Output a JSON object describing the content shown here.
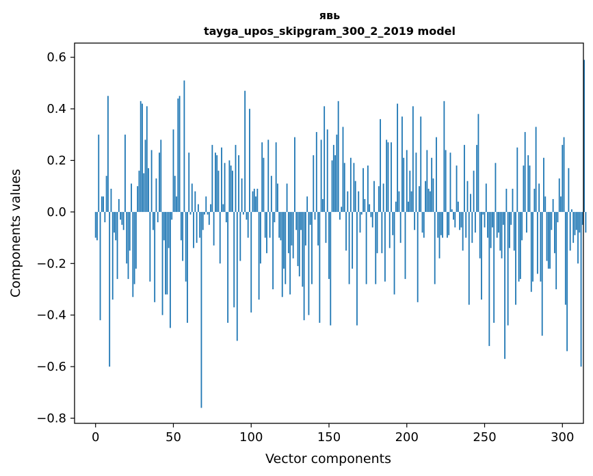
{
  "chart_data": {
    "type": "bar",
    "title": "явь",
    "subtitle": "tayga_upos_skipgram_300_2_2019 model",
    "xlabel": "Vector components",
    "ylabel": "Components values",
    "xlim": [
      -13.5,
      313.5
    ],
    "ylim": [
      -0.82,
      0.655
    ],
    "xticks": [
      0,
      50,
      100,
      150,
      200,
      250,
      300
    ],
    "yticks": [
      0.6,
      0.4,
      0.2,
      0.0,
      -0.2,
      -0.4,
      -0.6,
      -0.8
    ],
    "ytick_labels": [
      "0.6",
      "0.4",
      "0.2",
      "0.0",
      "−0.2",
      "−0.4",
      "−0.6",
      "−0.8"
    ],
    "xtick_labels": [
      "0",
      "50",
      "100",
      "150",
      "200",
      "250",
      "300"
    ],
    "grid": false,
    "bar_color": "#1f77b4",
    "categories_start": 0,
    "values": [
      -0.1,
      -0.11,
      0.3,
      -0.42,
      0.06,
      0.06,
      -0.04,
      0.14,
      0.45,
      -0.6,
      0.09,
      -0.34,
      -0.08,
      -0.11,
      -0.26,
      0.05,
      -0.03,
      -0.05,
      -0.07,
      0.3,
      -0.2,
      -0.26,
      -0.15,
      0.11,
      -0.33,
      -0.28,
      -0.22,
      0.1,
      0.16,
      0.43,
      0.42,
      0.15,
      0.28,
      0.41,
      0.17,
      -0.27,
      0.24,
      -0.07,
      -0.35,
      0.13,
      -0.04,
      0.23,
      0.28,
      -0.4,
      -0.11,
      -0.32,
      -0.32,
      -0.14,
      -0.45,
      -0.03,
      0.32,
      0.14,
      0.06,
      0.44,
      0.45,
      -0.11,
      -0.19,
      0.51,
      -0.27,
      -0.43,
      0.23,
      -0.01,
      0.11,
      -0.14,
      0.08,
      -0.12,
      0.03,
      -0.1,
      -0.76,
      -0.07,
      -0.01,
      0.06,
      -0.01,
      -0.05,
      0.03,
      0.26,
      -0.13,
      0.23,
      0.22,
      0.16,
      -0.2,
      0.25,
      0.03,
      0.19,
      -0.04,
      -0.43,
      0.2,
      0.18,
      0.16,
      -0.37,
      0.26,
      -0.5,
      0.22,
      -0.19,
      0.13,
      -0.01,
      0.47,
      -0.03,
      -0.1,
      0.4,
      -0.39,
      0.08,
      0.09,
      0.06,
      0.09,
      -0.34,
      -0.2,
      0.27,
      0.21,
      -0.1,
      -0.16,
      0.28,
      -0.1,
      0.14,
      -0.3,
      -0.04,
      0.27,
      0.11,
      -0.1,
      -0.11,
      -0.33,
      -0.22,
      -0.28,
      0.11,
      -0.16,
      -0.32,
      -0.13,
      -0.18,
      0.29,
      -0.07,
      -0.21,
      -0.25,
      -0.07,
      -0.29,
      -0.42,
      -0.13,
      0.06,
      -0.4,
      -0.05,
      -0.28,
      0.22,
      -0.03,
      0.31,
      -0.13,
      -0.43,
      0.28,
      0.05,
      0.41,
      -0.12,
      0.32,
      -0.26,
      -0.44,
      0.2,
      0.26,
      0.22,
      0.3,
      0.43,
      -0.03,
      0.02,
      0.33,
      0.19,
      -0.15,
      0.08,
      -0.28,
      0.21,
      -0.22,
      0.19,
      0.12,
      -0.44,
      0.08,
      -0.08,
      -0.01,
      0.17,
      0.05,
      -0.28,
      0.18,
      0.03,
      -0.02,
      -0.06,
      0.12,
      -0.28,
      -0.16,
      0.1,
      0.36,
      -0.16,
      0.11,
      -0.27,
      0.28,
      0.27,
      -0.14,
      0.27,
      -0.09,
      -0.32,
      0.04,
      0.42,
      0.08,
      -0.12,
      0.37,
      0.21,
      -0.26,
      0.24,
      0.04,
      0.16,
      0.08,
      0.41,
      -0.07,
      0.23,
      -0.35,
      0.1,
      0.37,
      -0.08,
      -0.1,
      0.12,
      0.24,
      0.09,
      0.08,
      0.21,
      0.13,
      -0.28,
      0.29,
      -0.1,
      -0.18,
      -0.09,
      -0.1,
      0.43,
      0.24,
      -0.1,
      -0.09,
      0.23,
      0.01,
      -0.03,
      -0.06,
      0.18,
      0.04,
      -0.07,
      -0.06,
      -0.15,
      0.26,
      -0.1,
      0.12,
      -0.36,
      0.07,
      -0.12,
      0.16,
      -0.08,
      0.26,
      0.38,
      -0.18,
      -0.34,
      -0.01,
      -0.06,
      0.11,
      -0.1,
      -0.52,
      -0.14,
      -0.06,
      -0.43,
      0.19,
      -0.1,
      -0.08,
      -0.15,
      -0.18,
      -0.05,
      -0.57,
      0.09,
      -0.44,
      -0.14,
      -0.05,
      0.09,
      -0.15,
      -0.36,
      0.25,
      -0.27,
      -0.26,
      -0.11,
      0.18,
      0.31,
      -0.08,
      0.22,
      0.18,
      -0.31,
      -0.27,
      0.09,
      0.33,
      -0.24,
      0.11,
      -0.27,
      -0.48,
      0.21,
      0.06,
      -0.19,
      -0.22,
      -0.22,
      -0.07,
      0.05,
      -0.16,
      -0.3,
      -0.04,
      0.13,
      0.06,
      0.26,
      0.29,
      -0.36,
      -0.54,
      0.17,
      -0.15,
      0.01,
      -0.12,
      -0.09,
      -0.07,
      -0.2,
      -0.08,
      -0.6,
      -0.05,
      0.59,
      -0.08
    ]
  }
}
